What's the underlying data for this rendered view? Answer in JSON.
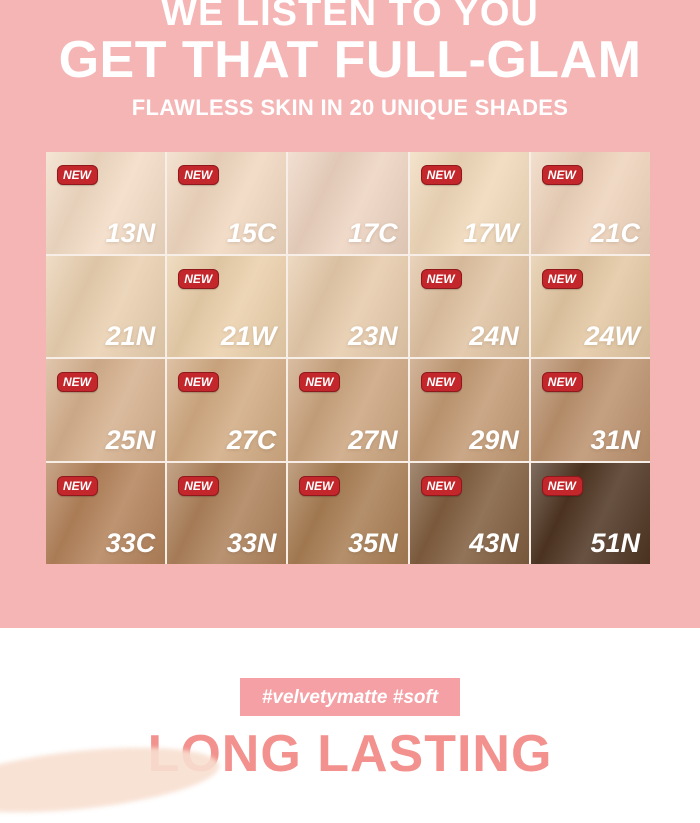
{
  "page": {
    "background_color": "#F5B5B5",
    "footer_background_color": "#FFFFFF"
  },
  "header": {
    "tagline": "WE LISTEN TO YOU",
    "title": "GET THAT FULL-GLAM",
    "subtitle": "FLAWLESS SKIN IN 20 UNIQUE SHADES",
    "text_color": "#FFFFFF"
  },
  "shade_grid": {
    "columns": 5,
    "rows": 4,
    "gap_color": "#F7EFE7",
    "new_badge": {
      "label": "NEW",
      "background_color": "#C3272B",
      "border_color": "#8F181D",
      "text_color": "#FFFFFF"
    },
    "shades": [
      {
        "code": "13N",
        "color": "#F2DBC4",
        "is_new": true
      },
      {
        "code": "15C",
        "color": "#F0D7BF",
        "is_new": true
      },
      {
        "code": "17C",
        "color": "#EDD3C0",
        "is_new": false
      },
      {
        "code": "17W",
        "color": "#F0D8B9",
        "is_new": true
      },
      {
        "code": "21C",
        "color": "#EED3BB",
        "is_new": true
      },
      {
        "code": "21N",
        "color": "#E9CFAF",
        "is_new": false
      },
      {
        "code": "21W",
        "color": "#EACFAA",
        "is_new": true
      },
      {
        "code": "23N",
        "color": "#E6CAAA",
        "is_new": false
      },
      {
        "code": "24N",
        "color": "#E0C2A1",
        "is_new": true
      },
      {
        "code": "24W",
        "color": "#E3C7A2",
        "is_new": true
      },
      {
        "code": "25N",
        "color": "#D5B08D",
        "is_new": true
      },
      {
        "code": "27C",
        "color": "#D1AA82",
        "is_new": true
      },
      {
        "code": "27N",
        "color": "#CBA47E",
        "is_new": true
      },
      {
        "code": "29N",
        "color": "#C29973",
        "is_new": true
      },
      {
        "code": "31N",
        "color": "#BB916D",
        "is_new": true
      },
      {
        "code": "33C",
        "color": "#B3825A",
        "is_new": true
      },
      {
        "code": "33N",
        "color": "#AD815A",
        "is_new": true
      },
      {
        "code": "35N",
        "color": "#A87D53",
        "is_new": true
      },
      {
        "code": "43N",
        "color": "#805D3E",
        "is_new": true
      },
      {
        "code": "51N",
        "color": "#4F3522",
        "is_new": true
      }
    ]
  },
  "footer": {
    "hashtag_banner": {
      "text": "#velvetymatte  #soft",
      "background_color": "#F4A0A5",
      "text_color": "#FFFFFF"
    },
    "headline": {
      "text": "LONG LASTING",
      "color": "#F2918D"
    }
  }
}
